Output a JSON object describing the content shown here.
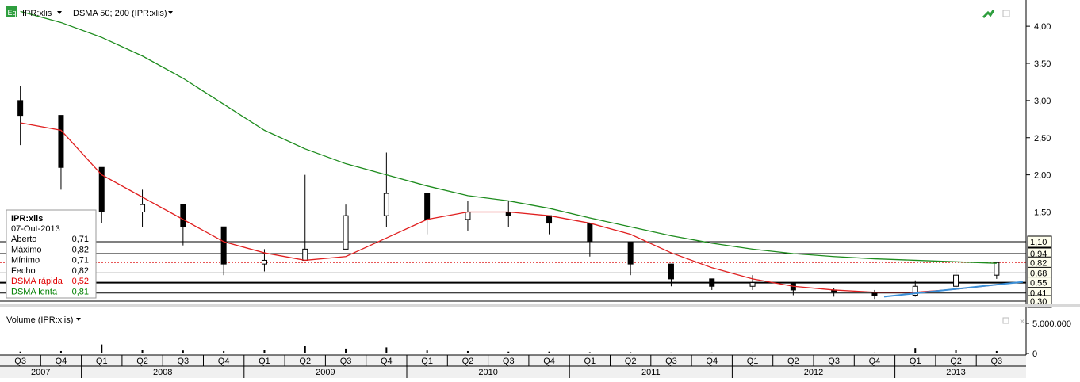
{
  "header": {
    "badge": "Eq",
    "symbol": "IPR:xlis",
    "indicator": "DSMA 50; 200 (IPR:xlis)"
  },
  "volume_panel": {
    "title": "Volume (IPR:xlis)",
    "axis_labels": [
      "5.000.000",
      "0"
    ]
  },
  "info_box": {
    "title": "IPR:xlis",
    "date": "07-Out-2013",
    "rows": [
      {
        "label": "Aberto",
        "value": "0,71",
        "color": "#000000"
      },
      {
        "label": "Máximo",
        "value": "0,82",
        "color": "#000000"
      },
      {
        "label": "Mínimo",
        "value": "0,71",
        "color": "#000000"
      },
      {
        "label": "Fecho",
        "value": "0,82",
        "color": "#000000"
      },
      {
        "label": "DSMA rápida",
        "value": "0,52",
        "color": "#e00000"
      },
      {
        "label": "DSMA lenta",
        "value": "0,81",
        "color": "#008000"
      }
    ]
  },
  "colors": {
    "fast_ma": "#e02020",
    "slow_ma": "#1e8c1e",
    "trend_line": "#3a8fd8",
    "dotted_level": "#e02020",
    "background": "#ffffff",
    "axis": "#000000"
  },
  "price_axis": {
    "ticks": [
      "4,00",
      "3,50",
      "3,00",
      "2,50",
      "2,00",
      "1,50"
    ],
    "level_labels": [
      "1,10",
      "0,94",
      "0,82",
      "0,68",
      "0,55",
      "0,41",
      "0,30"
    ]
  },
  "chart_data": {
    "type": "candlestick",
    "title": "",
    "ylim": [
      0.3,
      4.3
    ],
    "x": [
      "2007 Q3",
      "2007 Q4",
      "2008 Q1",
      "2008 Q2",
      "2008 Q3",
      "2008 Q4",
      "2009 Q1",
      "2009 Q2",
      "2009 Q3",
      "2009 Q4",
      "2010 Q1",
      "2010 Q2",
      "2010 Q3",
      "2010 Q4",
      "2011 Q1",
      "2011 Q2",
      "2011 Q3",
      "2011 Q4",
      "2012 Q1",
      "2012 Q2",
      "2012 Q3",
      "2012 Q4",
      "2013 Q1",
      "2013 Q2",
      "2013 Q3"
    ],
    "close": [
      2.8,
      2.1,
      1.5,
      1.6,
      1.3,
      0.8,
      0.85,
      1.0,
      1.45,
      1.75,
      1.4,
      1.5,
      1.45,
      1.35,
      1.1,
      0.8,
      0.6,
      0.5,
      0.55,
      0.45,
      0.42,
      0.38,
      0.5,
      0.65,
      0.82
    ],
    "high": [
      3.2,
      2.8,
      1.8,
      1.8,
      1.5,
      0.95,
      1.0,
      2.0,
      1.6,
      2.3,
      1.6,
      1.65,
      1.65,
      1.45,
      1.2,
      0.9,
      0.7,
      0.58,
      0.65,
      0.5,
      0.48,
      0.45,
      0.58,
      0.72,
      0.82
    ],
    "low": [
      2.4,
      1.8,
      1.35,
      1.3,
      1.05,
      0.65,
      0.7,
      0.85,
      1.2,
      1.3,
      1.2,
      1.25,
      1.3,
      1.2,
      0.9,
      0.65,
      0.5,
      0.45,
      0.45,
      0.38,
      0.36,
      0.33,
      0.36,
      0.45,
      0.6
    ],
    "series": [
      {
        "name": "DSMA rápida",
        "values": [
          2.7,
          2.6,
          2.0,
          1.7,
          1.4,
          1.1,
          0.95,
          0.85,
          0.9,
          1.15,
          1.4,
          1.5,
          1.5,
          1.45,
          1.35,
          1.2,
          0.95,
          0.75,
          0.6,
          0.5,
          0.45,
          0.42,
          0.42,
          0.46,
          0.52
        ]
      },
      {
        "name": "DSMA lenta",
        "values": [
          4.2,
          4.05,
          3.85,
          3.6,
          3.3,
          2.95,
          2.6,
          2.35,
          2.15,
          2.0,
          1.85,
          1.72,
          1.65,
          1.55,
          1.42,
          1.3,
          1.18,
          1.08,
          1.0,
          0.94,
          0.9,
          0.87,
          0.85,
          0.83,
          0.81
        ]
      }
    ],
    "volume": [
      0.3,
      0.4,
      1.5,
      0.6,
      0.5,
      0.4,
      0.6,
      1.2,
      0.8,
      1.0,
      0.5,
      0.4,
      0.3,
      0.3,
      0.2,
      0.2,
      0.15,
      0.15,
      0.15,
      0.1,
      0.1,
      0.15,
      0.9,
      0.6,
      0.4
    ],
    "volume_unit_max": 5.0,
    "quarter_labels": [
      "Q3",
      "Q4",
      "Q1",
      "Q2",
      "Q3",
      "Q4",
      "Q1",
      "Q2",
      "Q3",
      "Q4",
      "Q1",
      "Q2",
      "Q3",
      "Q4",
      "Q1",
      "Q2",
      "Q3",
      "Q4",
      "Q1",
      "Q2",
      "Q3",
      "Q4",
      "Q1",
      "Q2",
      "Q3"
    ],
    "year_labels": [
      "2007",
      "2008",
      "2009",
      "2010",
      "2011",
      "2012",
      "2013"
    ],
    "grid": false,
    "legend": "left"
  }
}
